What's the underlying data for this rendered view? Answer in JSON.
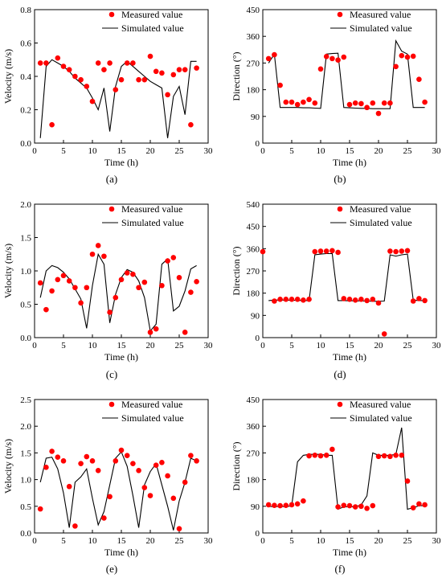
{
  "chart_data": [
    {
      "type": "scatter+line",
      "caption": "(a)",
      "xlabel": "Time (h)",
      "ylabel": "Velocity (m/s)",
      "xlim": [
        0,
        30
      ],
      "ylim": [
        0,
        0.8
      ],
      "xticks": [
        0,
        5,
        10,
        15,
        20,
        25,
        30
      ],
      "yticks": [
        0.0,
        0.2,
        0.4,
        0.6,
        0.8
      ],
      "ytick_labels": [
        "0.0",
        "0.2",
        "0.4",
        "0.6",
        "0.8"
      ],
      "legend": [
        "Measured value",
        "Simulated value"
      ],
      "measured": {
        "x": [
          1,
          2,
          3,
          4,
          5,
          6,
          7,
          8,
          9,
          10,
          11,
          12,
          13,
          14,
          15,
          16,
          17,
          18,
          19,
          20,
          21,
          22,
          23,
          24,
          25,
          26,
          27,
          28
        ],
        "y": [
          0.48,
          0.48,
          0.11,
          0.51,
          0.46,
          0.44,
          0.4,
          0.38,
          0.34,
          0.25,
          0.48,
          0.44,
          0.48,
          0.32,
          0.38,
          0.48,
          0.48,
          0.38,
          0.38,
          0.52,
          0.43,
          0.42,
          0.29,
          0.41,
          0.44,
          0.44,
          0.11,
          0.45
        ]
      },
      "simulated": {
        "x": [
          1,
          2,
          3,
          4,
          5,
          6,
          7,
          8,
          9,
          10,
          11,
          12,
          13,
          14,
          15,
          16,
          17,
          18,
          19,
          20,
          21,
          22,
          23,
          24,
          25,
          26,
          27,
          28
        ],
        "y": [
          0.03,
          0.46,
          0.5,
          0.48,
          0.46,
          0.43,
          0.39,
          0.36,
          0.33,
          0.27,
          0.2,
          0.33,
          0.07,
          0.34,
          0.46,
          0.49,
          0.46,
          0.43,
          0.4,
          0.37,
          0.35,
          0.33,
          0.03,
          0.28,
          0.34,
          0.17,
          0.49,
          0.49
        ]
      }
    },
    {
      "type": "scatter+line",
      "caption": "(b)",
      "xlabel": "Time (h)",
      "ylabel": "Direction (°)",
      "xlim": [
        0,
        30
      ],
      "ylim": [
        0,
        450
      ],
      "xticks": [
        0,
        5,
        10,
        15,
        20,
        25,
        30
      ],
      "yticks": [
        0,
        90,
        180,
        270,
        360,
        450
      ],
      "ytick_labels": [
        "0",
        "90",
        "180",
        "270",
        "360",
        "450"
      ],
      "legend": [
        "Measured value",
        "Simulated value"
      ],
      "measured": {
        "x": [
          1,
          2,
          3,
          4,
          5,
          6,
          7,
          8,
          9,
          10,
          11,
          12,
          13,
          14,
          15,
          16,
          17,
          18,
          19,
          20,
          21,
          22,
          23,
          24,
          25,
          26,
          27,
          28
        ],
        "y": [
          285,
          298,
          195,
          138,
          138,
          130,
          138,
          147,
          135,
          250,
          292,
          285,
          280,
          290,
          130,
          135,
          133,
          120,
          135,
          100,
          135,
          135,
          258,
          295,
          290,
          293,
          215,
          138
        ]
      },
      "simulated": {
        "x": [
          1,
          2,
          3,
          4,
          5,
          6,
          7,
          8,
          9,
          10,
          11,
          12,
          13,
          14,
          15,
          16,
          17,
          18,
          19,
          20,
          21,
          22,
          23,
          24,
          25,
          26,
          27,
          28
        ],
        "y": [
          270,
          300,
          120,
          120,
          120,
          120,
          119,
          119,
          118,
          117,
          300,
          302,
          303,
          120,
          119,
          118,
          117,
          117,
          116,
          116,
          116,
          116,
          345,
          310,
          300,
          120,
          120,
          120
        ]
      }
    },
    {
      "type": "scatter+line",
      "caption": "(c)",
      "xlabel": "Time (h)",
      "ylabel": "Velocity (m/s)",
      "xlim": [
        0,
        30
      ],
      "ylim": [
        0,
        2.0
      ],
      "xticks": [
        0,
        5,
        10,
        15,
        20,
        25,
        30
      ],
      "yticks": [
        0.0,
        0.5,
        1.0,
        1.5,
        2.0
      ],
      "ytick_labels": [
        "0.0",
        "0.5",
        "1.0",
        "1.5",
        "2.0"
      ],
      "legend": [
        "Measured value",
        "Simulated value"
      ],
      "measured": {
        "x": [
          1,
          2,
          3,
          4,
          5,
          6,
          7,
          8,
          9,
          10,
          11,
          12,
          13,
          14,
          15,
          16,
          17,
          18,
          19,
          20,
          21,
          22,
          23,
          24,
          25,
          26,
          27,
          28
        ],
        "y": [
          0.82,
          0.42,
          0.7,
          0.87,
          0.93,
          0.85,
          0.75,
          0.52,
          0.75,
          1.25,
          1.38,
          1.22,
          0.38,
          0.6,
          0.87,
          0.97,
          0.95,
          0.75,
          0.83,
          0.08,
          0.13,
          0.78,
          1.15,
          1.2,
          0.9,
          0.08,
          0.68,
          0.84
        ]
      },
      "simulated": {
        "x": [
          1,
          2,
          3,
          4,
          5,
          6,
          7,
          8,
          9,
          10,
          11,
          12,
          13,
          14,
          15,
          16,
          17,
          18,
          19,
          20,
          21,
          22,
          23,
          24,
          25,
          26,
          27,
          28
        ],
        "y": [
          0.6,
          1.0,
          1.08,
          1.05,
          0.98,
          0.88,
          0.73,
          0.58,
          0.14,
          0.78,
          1.25,
          1.1,
          0.22,
          0.65,
          0.9,
          1.02,
          0.98,
          0.85,
          0.6,
          0.1,
          0.2,
          1.1,
          1.18,
          0.4,
          0.47,
          0.7,
          1.03,
          1.08
        ]
      }
    },
    {
      "type": "scatter+line",
      "caption": "(d)",
      "xlabel": "Time (h)",
      "ylabel": "Direction (°)",
      "xlim": [
        0,
        30
      ],
      "ylim": [
        0,
        540
      ],
      "xticks": [
        0,
        5,
        10,
        15,
        20,
        25,
        30
      ],
      "yticks": [
        0,
        90,
        180,
        270,
        360,
        450,
        540
      ],
      "ytick_labels": [
        "0",
        "90",
        "180",
        "270",
        "360",
        "450",
        "540"
      ],
      "legend": [
        "Measured value",
        "Simulated value"
      ],
      "measured": {
        "x": [
          0,
          2,
          3,
          4,
          5,
          6,
          7,
          8,
          9,
          10,
          11,
          12,
          13,
          14,
          15,
          16,
          17,
          18,
          19,
          20,
          21,
          22,
          23,
          24,
          25,
          26,
          27,
          28
        ],
        "y": [
          348,
          148,
          155,
          155,
          155,
          155,
          152,
          155,
          348,
          350,
          350,
          352,
          345,
          158,
          155,
          152,
          155,
          150,
          155,
          140,
          15,
          350,
          348,
          350,
          352,
          148,
          158,
          150
        ]
      },
      "simulated": {
        "x": [
          1,
          2,
          3,
          4,
          5,
          6,
          7,
          8,
          9,
          10,
          11,
          12,
          13,
          14,
          15,
          16,
          17,
          18,
          19,
          20,
          21,
          22,
          23,
          24,
          25,
          26,
          27,
          28
        ],
        "y": [
          150,
          152,
          152,
          152,
          151,
          151,
          150,
          150,
          335,
          338,
          340,
          340,
          150,
          150,
          149,
          149,
          148,
          148,
          147,
          147,
          148,
          335,
          330,
          335,
          338,
          152,
          150,
          150
        ]
      }
    },
    {
      "type": "scatter+line",
      "caption": "(e)",
      "xlabel": "Time (h)",
      "ylabel": "Velocity (m/s)",
      "xlim": [
        0,
        30
      ],
      "ylim": [
        0,
        2.5
      ],
      "xticks": [
        0,
        5,
        10,
        15,
        20,
        25,
        30
      ],
      "yticks": [
        0.0,
        0.5,
        1.0,
        1.5,
        2.0,
        2.5
      ],
      "ytick_labels": [
        "0.0",
        "0.5",
        "1.0",
        "1.5",
        "2.0",
        "2.5"
      ],
      "legend": [
        "Measured value",
        "Simulated value"
      ],
      "measured": {
        "x": [
          1,
          2,
          3,
          4,
          5,
          6,
          7,
          8,
          9,
          10,
          11,
          12,
          13,
          14,
          15,
          16,
          17,
          18,
          19,
          20,
          21,
          22,
          23,
          24,
          25,
          26,
          27,
          28
        ],
        "y": [
          0.45,
          1.23,
          1.53,
          1.42,
          1.35,
          0.87,
          0.13,
          1.3,
          1.43,
          1.35,
          1.17,
          0.28,
          0.68,
          1.35,
          1.55,
          1.45,
          1.3,
          1.17,
          0.85,
          0.7,
          1.27,
          1.32,
          1.07,
          0.65,
          0.08,
          0.95,
          1.45,
          1.35
        ]
      },
      "simulated": {
        "x": [
          1,
          2,
          3,
          4,
          5,
          6,
          7,
          8,
          9,
          10,
          11,
          12,
          13,
          14,
          15,
          16,
          17,
          18,
          19,
          20,
          21,
          22,
          23,
          24,
          25,
          26,
          27,
          28
        ],
        "y": [
          0.95,
          1.4,
          1.42,
          1.2,
          0.75,
          0.1,
          0.95,
          1.05,
          1.2,
          0.65,
          0.15,
          0.4,
          0.9,
          1.4,
          1.52,
          1.25,
          0.7,
          0.1,
          0.9,
          1.15,
          1.3,
          0.9,
          0.5,
          0.05,
          0.6,
          0.95,
          1.4,
          1.35
        ]
      }
    },
    {
      "type": "scatter+line",
      "caption": "(f)",
      "xlabel": "Time (h)",
      "ylabel": "Direction (°)",
      "xlim": [
        0,
        30
      ],
      "ylim": [
        0,
        450
      ],
      "xticks": [
        0,
        5,
        10,
        15,
        20,
        25,
        30
      ],
      "yticks": [
        0,
        90,
        180,
        270,
        360,
        450
      ],
      "ytick_labels": [
        "0",
        "90",
        "180",
        "270",
        "360",
        "450"
      ],
      "legend": [
        "Measured value",
        "Simulated value"
      ],
      "measured": {
        "x": [
          1,
          2,
          3,
          4,
          5,
          6,
          7,
          8,
          9,
          10,
          11,
          12,
          13,
          14,
          15,
          16,
          17,
          18,
          19,
          20,
          21,
          22,
          23,
          24,
          25,
          26,
          27,
          28
        ],
        "y": [
          95,
          93,
          92,
          93,
          95,
          98,
          108,
          260,
          262,
          260,
          262,
          282,
          88,
          93,
          92,
          88,
          90,
          83,
          92,
          258,
          260,
          258,
          262,
          262,
          175,
          85,
          98,
          95
        ]
      },
      "simulated": {
        "x": [
          1,
          2,
          3,
          4,
          5,
          6,
          7,
          8,
          9,
          10,
          11,
          12,
          13,
          14,
          15,
          16,
          17,
          18,
          19,
          20,
          21,
          22,
          23,
          24,
          25,
          26,
          27,
          28
        ],
        "y": [
          90,
          88,
          90,
          88,
          92,
          240,
          262,
          265,
          265,
          265,
          262,
          262,
          80,
          88,
          88,
          88,
          95,
          125,
          270,
          262,
          262,
          262,
          265,
          355,
          80,
          85,
          92,
          92
        ]
      }
    }
  ],
  "colors": {
    "measured": "#ff0000",
    "simulated": "#000000",
    "axis": "#000000"
  }
}
